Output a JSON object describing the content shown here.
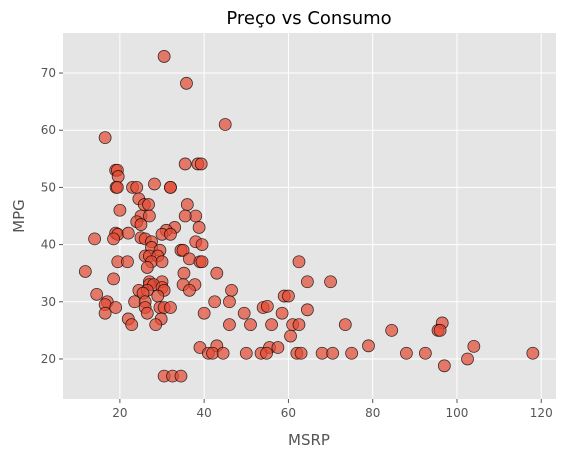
{
  "chart_data": {
    "type": "scatter",
    "title": "Preço vs Consumo",
    "xlabel": "MSRP",
    "ylabel": "MPG",
    "xlim": [
      6.5,
      123.5
    ],
    "ylim": [
      13.0,
      77.0
    ],
    "xticks": [
      20,
      40,
      60,
      80,
      100,
      120
    ],
    "yticks": [
      20,
      30,
      40,
      50,
      60,
      70
    ],
    "grid": true,
    "colors": {
      "background": "#E5E5E5",
      "grid": "#FFFFFF",
      "marker_fill": "#E24A33",
      "marker_edge": "#000000",
      "tick": "#555555"
    },
    "points": [
      [
        30.5,
        72.9
      ],
      [
        35.8,
        68.2
      ],
      [
        45.0,
        61.0
      ],
      [
        16.5,
        58.7
      ],
      [
        35.5,
        54.1
      ],
      [
        38.5,
        54.1
      ],
      [
        39.3,
        54.1
      ],
      [
        19.0,
        53.0
      ],
      [
        19.4,
        53.0
      ],
      [
        19.6,
        51.9
      ],
      [
        28.2,
        50.6
      ],
      [
        32.0,
        50.0
      ],
      [
        19.1,
        50.0
      ],
      [
        19.4,
        50.0
      ],
      [
        23.0,
        50.0
      ],
      [
        24.0,
        50.0
      ],
      [
        32.0,
        50.0
      ],
      [
        24.5,
        48.0
      ],
      [
        25.8,
        47.0
      ],
      [
        26.8,
        47.0
      ],
      [
        36.0,
        47.0
      ],
      [
        38.0,
        45.0
      ],
      [
        20.0,
        46.0
      ],
      [
        25.0,
        45.0
      ],
      [
        27.0,
        45.0
      ],
      [
        35.5,
        45.0
      ],
      [
        24.0,
        44.0
      ],
      [
        25.0,
        43.5
      ],
      [
        33.0,
        43.0
      ],
      [
        38.8,
        43.0
      ],
      [
        31.0,
        42.5
      ],
      [
        19.0,
        42.0
      ],
      [
        19.5,
        41.8
      ],
      [
        22.0,
        42.0
      ],
      [
        25.0,
        41.2
      ],
      [
        30.0,
        41.8
      ],
      [
        32.0,
        41.8
      ],
      [
        14.0,
        41.0
      ],
      [
        18.5,
        41.0
      ],
      [
        26.0,
        41.0
      ],
      [
        27.5,
        40.5
      ],
      [
        38.0,
        40.5
      ],
      [
        27.5,
        39.5
      ],
      [
        39.5,
        40.0
      ],
      [
        29.5,
        39.0
      ],
      [
        34.5,
        39.0
      ],
      [
        35.0,
        39.0
      ],
      [
        26.0,
        38.0
      ],
      [
        27.0,
        38.0
      ],
      [
        29.0,
        38.0
      ],
      [
        36.5,
        37.5
      ],
      [
        19.5,
        37.0
      ],
      [
        21.8,
        37.0
      ],
      [
        27.5,
        37.0
      ],
      [
        30.0,
        37.0
      ],
      [
        39.0,
        37.0
      ],
      [
        39.5,
        37.0
      ],
      [
        62.5,
        37.0
      ],
      [
        26.5,
        36.0
      ],
      [
        11.8,
        35.3
      ],
      [
        35.2,
        35.0
      ],
      [
        43.0,
        35.0
      ],
      [
        18.5,
        34.0
      ],
      [
        27.0,
        33.5
      ],
      [
        30.0,
        33.5
      ],
      [
        64.5,
        33.5
      ],
      [
        70.0,
        33.5
      ],
      [
        27.0,
        33.0
      ],
      [
        28.0,
        33.0
      ],
      [
        35.0,
        33.0
      ],
      [
        37.8,
        33.0
      ],
      [
        30.0,
        32.5
      ],
      [
        24.5,
        32.0
      ],
      [
        26.5,
        32.0
      ],
      [
        30.5,
        32.0
      ],
      [
        36.5,
        32.0
      ],
      [
        46.5,
        32.0
      ],
      [
        14.5,
        31.3
      ],
      [
        25.5,
        31.5
      ],
      [
        29.0,
        31.0
      ],
      [
        59.0,
        31.0
      ],
      [
        60.0,
        31.0
      ],
      [
        42.5,
        30.0
      ],
      [
        46.0,
        30.0
      ],
      [
        17.0,
        30.0
      ],
      [
        23.5,
        30.0
      ],
      [
        26.0,
        30.0
      ],
      [
        54.0,
        29.0
      ],
      [
        55.0,
        29.2
      ],
      [
        16.5,
        29.5
      ],
      [
        19.0,
        29.0
      ],
      [
        26.0,
        29.0
      ],
      [
        29.5,
        29.0
      ],
      [
        30.5,
        29.0
      ],
      [
        32.0,
        29.0
      ],
      [
        64.5,
        28.6
      ],
      [
        16.5,
        28.0
      ],
      [
        26.5,
        28.0
      ],
      [
        40.0,
        28.0
      ],
      [
        49.5,
        28.0
      ],
      [
        58.5,
        28.0
      ],
      [
        22.0,
        27.0
      ],
      [
        29.8,
        27.0
      ],
      [
        22.8,
        26.0
      ],
      [
        28.5,
        26.0
      ],
      [
        46.0,
        26.0
      ],
      [
        51.0,
        26.0
      ],
      [
        56.0,
        26.0
      ],
      [
        61.0,
        26.0
      ],
      [
        62.5,
        26.0
      ],
      [
        73.5,
        26.0
      ],
      [
        96.5,
        26.3
      ],
      [
        84.5,
        25.0
      ],
      [
        95.5,
        25.0
      ],
      [
        96.0,
        25.0
      ],
      [
        60.5,
        24.0
      ],
      [
        43.0,
        22.3
      ],
      [
        55.5,
        22.0
      ],
      [
        57.5,
        22.0
      ],
      [
        39.0,
        22.0
      ],
      [
        79.0,
        22.3
      ],
      [
        104.0,
        22.2
      ],
      [
        41.0,
        21.0
      ],
      [
        42.0,
        21.0
      ],
      [
        44.5,
        21.0
      ],
      [
        50.0,
        21.0
      ],
      [
        53.5,
        21.0
      ],
      [
        54.8,
        21.0
      ],
      [
        62.0,
        21.0
      ],
      [
        63.0,
        21.0
      ],
      [
        68.0,
        21.0
      ],
      [
        70.5,
        21.0
      ],
      [
        75.0,
        21.0
      ],
      [
        88.0,
        21.0
      ],
      [
        92.5,
        21.0
      ],
      [
        118.0,
        21.0
      ],
      [
        102.5,
        20.0
      ],
      [
        97.0,
        18.8
      ],
      [
        30.5,
        17.0
      ],
      [
        32.5,
        17.0
      ],
      [
        34.5,
        17.0
      ]
    ]
  }
}
